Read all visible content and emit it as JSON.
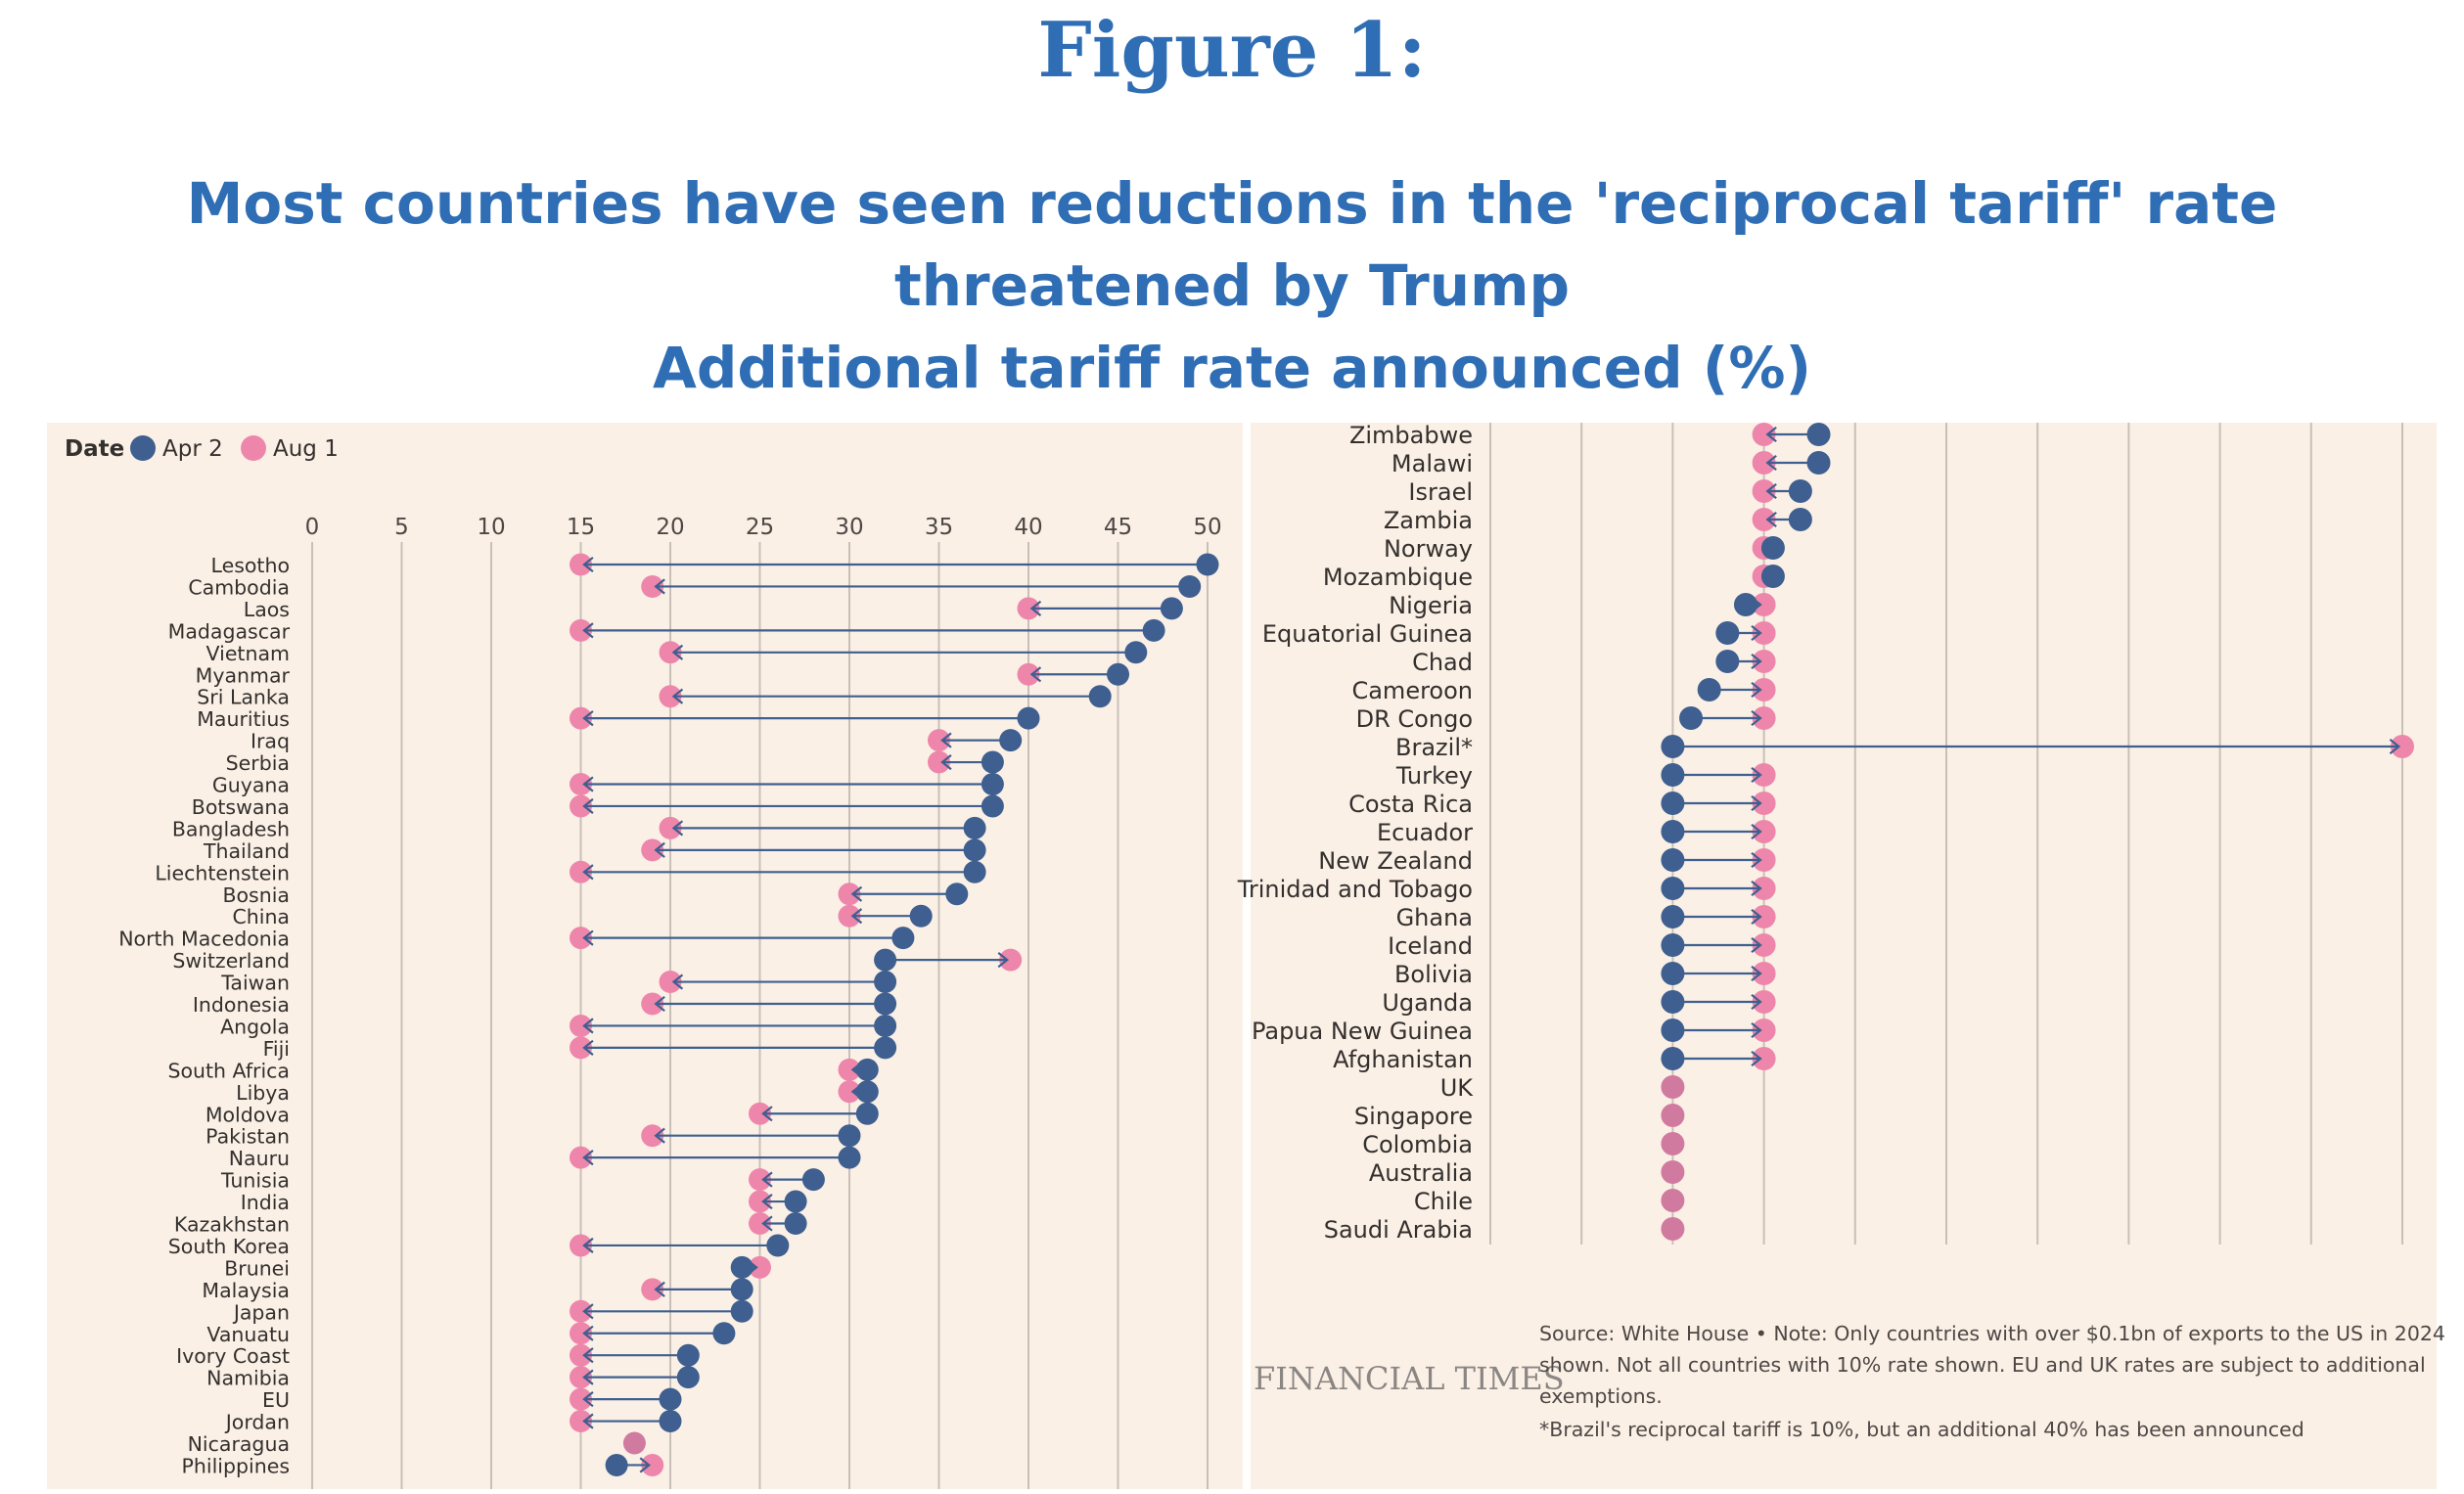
{
  "figure_label": "Figure 1:",
  "headline_line1": "Most countries have seen reductions in the 'reciprocal tariff' rate",
  "headline_line2": "threatened by Trump",
  "headline_line3": "Additional tariff rate announced (%)",
  "legend": {
    "title": "Date",
    "apr_label": "Apr 2",
    "aug_label": "Aug 1"
  },
  "colors": {
    "apr": "#3e5f8f",
    "aug": "#ee86ab",
    "aug_equal": "#d17aa0",
    "background": "#fbf0e6",
    "title": "#2f6eb5"
  },
  "source_note": [
    "Source: White House • Note: Only countries with over $0.1bn of exports to the US in 2024",
    "shown. Not all countries with 10% rate shown. EU and UK rates are subject to additional",
    "exemptions.",
    "*Brazil's reciprocal tariff is 10%, but an additional 40% has been announced"
  ],
  "publisher": "FINANCIAL TIMES",
  "chart_data": [
    {
      "type": "dumbbell",
      "xlim": [
        0,
        50
      ],
      "xticks": [
        0,
        5,
        10,
        15,
        20,
        25,
        30,
        35,
        40,
        45,
        50
      ],
      "series_names": [
        "Apr 2",
        "Aug 1"
      ],
      "rows": [
        {
          "country": "Lesotho",
          "apr": 50,
          "aug": 15
        },
        {
          "country": "Cambodia",
          "apr": 49,
          "aug": 19
        },
        {
          "country": "Laos",
          "apr": 48,
          "aug": 40
        },
        {
          "country": "Madagascar",
          "apr": 47,
          "aug": 15
        },
        {
          "country": "Vietnam",
          "apr": 46,
          "aug": 20
        },
        {
          "country": "Myanmar",
          "apr": 45,
          "aug": 40
        },
        {
          "country": "Sri Lanka",
          "apr": 44,
          "aug": 20
        },
        {
          "country": "Mauritius",
          "apr": 40,
          "aug": 15
        },
        {
          "country": "Iraq",
          "apr": 39,
          "aug": 35
        },
        {
          "country": "Serbia",
          "apr": 38,
          "aug": 35
        },
        {
          "country": "Guyana",
          "apr": 38,
          "aug": 15
        },
        {
          "country": "Botswana",
          "apr": 38,
          "aug": 15
        },
        {
          "country": "Bangladesh",
          "apr": 37,
          "aug": 20
        },
        {
          "country": "Thailand",
          "apr": 37,
          "aug": 19
        },
        {
          "country": "Liechtenstein",
          "apr": 37,
          "aug": 15
        },
        {
          "country": "Bosnia",
          "apr": 36,
          "aug": 30
        },
        {
          "country": "China",
          "apr": 34,
          "aug": 30
        },
        {
          "country": "North Macedonia",
          "apr": 33,
          "aug": 15
        },
        {
          "country": "Switzerland",
          "apr": 32,
          "aug": 39
        },
        {
          "country": "Taiwan",
          "apr": 32,
          "aug": 20
        },
        {
          "country": "Indonesia",
          "apr": 32,
          "aug": 19
        },
        {
          "country": "Angola",
          "apr": 32,
          "aug": 15
        },
        {
          "country": "Fiji",
          "apr": 32,
          "aug": 15
        },
        {
          "country": "South Africa",
          "apr": 31,
          "aug": 30
        },
        {
          "country": "Libya",
          "apr": 31,
          "aug": 30
        },
        {
          "country": "Moldova",
          "apr": 31,
          "aug": 25
        },
        {
          "country": "Pakistan",
          "apr": 30,
          "aug": 19
        },
        {
          "country": "Nauru",
          "apr": 30,
          "aug": 15
        },
        {
          "country": "Tunisia",
          "apr": 28,
          "aug": 25
        },
        {
          "country": "India",
          "apr": 27,
          "aug": 25
        },
        {
          "country": "Kazakhstan",
          "apr": 27,
          "aug": 25
        },
        {
          "country": "South Korea",
          "apr": 26,
          "aug": 15
        },
        {
          "country": "Brunei",
          "apr": 24,
          "aug": 25
        },
        {
          "country": "Malaysia",
          "apr": 24,
          "aug": 19
        },
        {
          "country": "Japan",
          "apr": 24,
          "aug": 15
        },
        {
          "country": "Vanuatu",
          "apr": 23,
          "aug": 15
        },
        {
          "country": "Ivory Coast",
          "apr": 21,
          "aug": 15
        },
        {
          "country": "Namibia",
          "apr": 21,
          "aug": 15
        },
        {
          "country": "EU",
          "apr": 20,
          "aug": 15
        },
        {
          "country": "Jordan",
          "apr": 20,
          "aug": 15
        },
        {
          "country": "Nicaragua",
          "apr": 18,
          "aug": 18
        },
        {
          "country": "Philippines",
          "apr": 17,
          "aug": 19
        }
      ]
    },
    {
      "type": "dumbbell",
      "xlim": [
        0,
        50
      ],
      "series_names": [
        "Apr 2",
        "Aug 1"
      ],
      "rows": [
        {
          "country": "Zimbabwe",
          "apr": 18,
          "aug": 15
        },
        {
          "country": "Malawi",
          "apr": 18,
          "aug": 15
        },
        {
          "country": "Israel",
          "apr": 17,
          "aug": 15
        },
        {
          "country": "Zambia",
          "apr": 17,
          "aug": 15
        },
        {
          "country": "Norway",
          "apr": 15.5,
          "aug": 15
        },
        {
          "country": "Mozambique",
          "apr": 15.5,
          "aug": 15
        },
        {
          "country": "Nigeria",
          "apr": 14,
          "aug": 15
        },
        {
          "country": "Equatorial Guinea",
          "apr": 13,
          "aug": 15
        },
        {
          "country": "Chad",
          "apr": 13,
          "aug": 15
        },
        {
          "country": "Cameroon",
          "apr": 12,
          "aug": 15
        },
        {
          "country": "DR Congo",
          "apr": 11,
          "aug": 15
        },
        {
          "country": "Brazil*",
          "apr": 10,
          "aug": 50
        },
        {
          "country": "Turkey",
          "apr": 10,
          "aug": 15
        },
        {
          "country": "Costa Rica",
          "apr": 10,
          "aug": 15
        },
        {
          "country": "Ecuador",
          "apr": 10,
          "aug": 15
        },
        {
          "country": "New Zealand",
          "apr": 10,
          "aug": 15
        },
        {
          "country": "Trinidad and Tobago",
          "apr": 10,
          "aug": 15
        },
        {
          "country": "Ghana",
          "apr": 10,
          "aug": 15
        },
        {
          "country": "Iceland",
          "apr": 10,
          "aug": 15
        },
        {
          "country": "Bolivia",
          "apr": 10,
          "aug": 15
        },
        {
          "country": "Uganda",
          "apr": 10,
          "aug": 15
        },
        {
          "country": "Papua New Guinea",
          "apr": 10,
          "aug": 15
        },
        {
          "country": "Afghanistan",
          "apr": 10,
          "aug": 15
        },
        {
          "country": "UK",
          "apr": 10,
          "aug": 10
        },
        {
          "country": "Singapore",
          "apr": 10,
          "aug": 10
        },
        {
          "country": "Colombia",
          "apr": 10,
          "aug": 10
        },
        {
          "country": "Australia",
          "apr": 10,
          "aug": 10
        },
        {
          "country": "Chile",
          "apr": 10,
          "aug": 10
        },
        {
          "country": "Saudi Arabia",
          "apr": 10,
          "aug": 10
        }
      ]
    }
  ]
}
